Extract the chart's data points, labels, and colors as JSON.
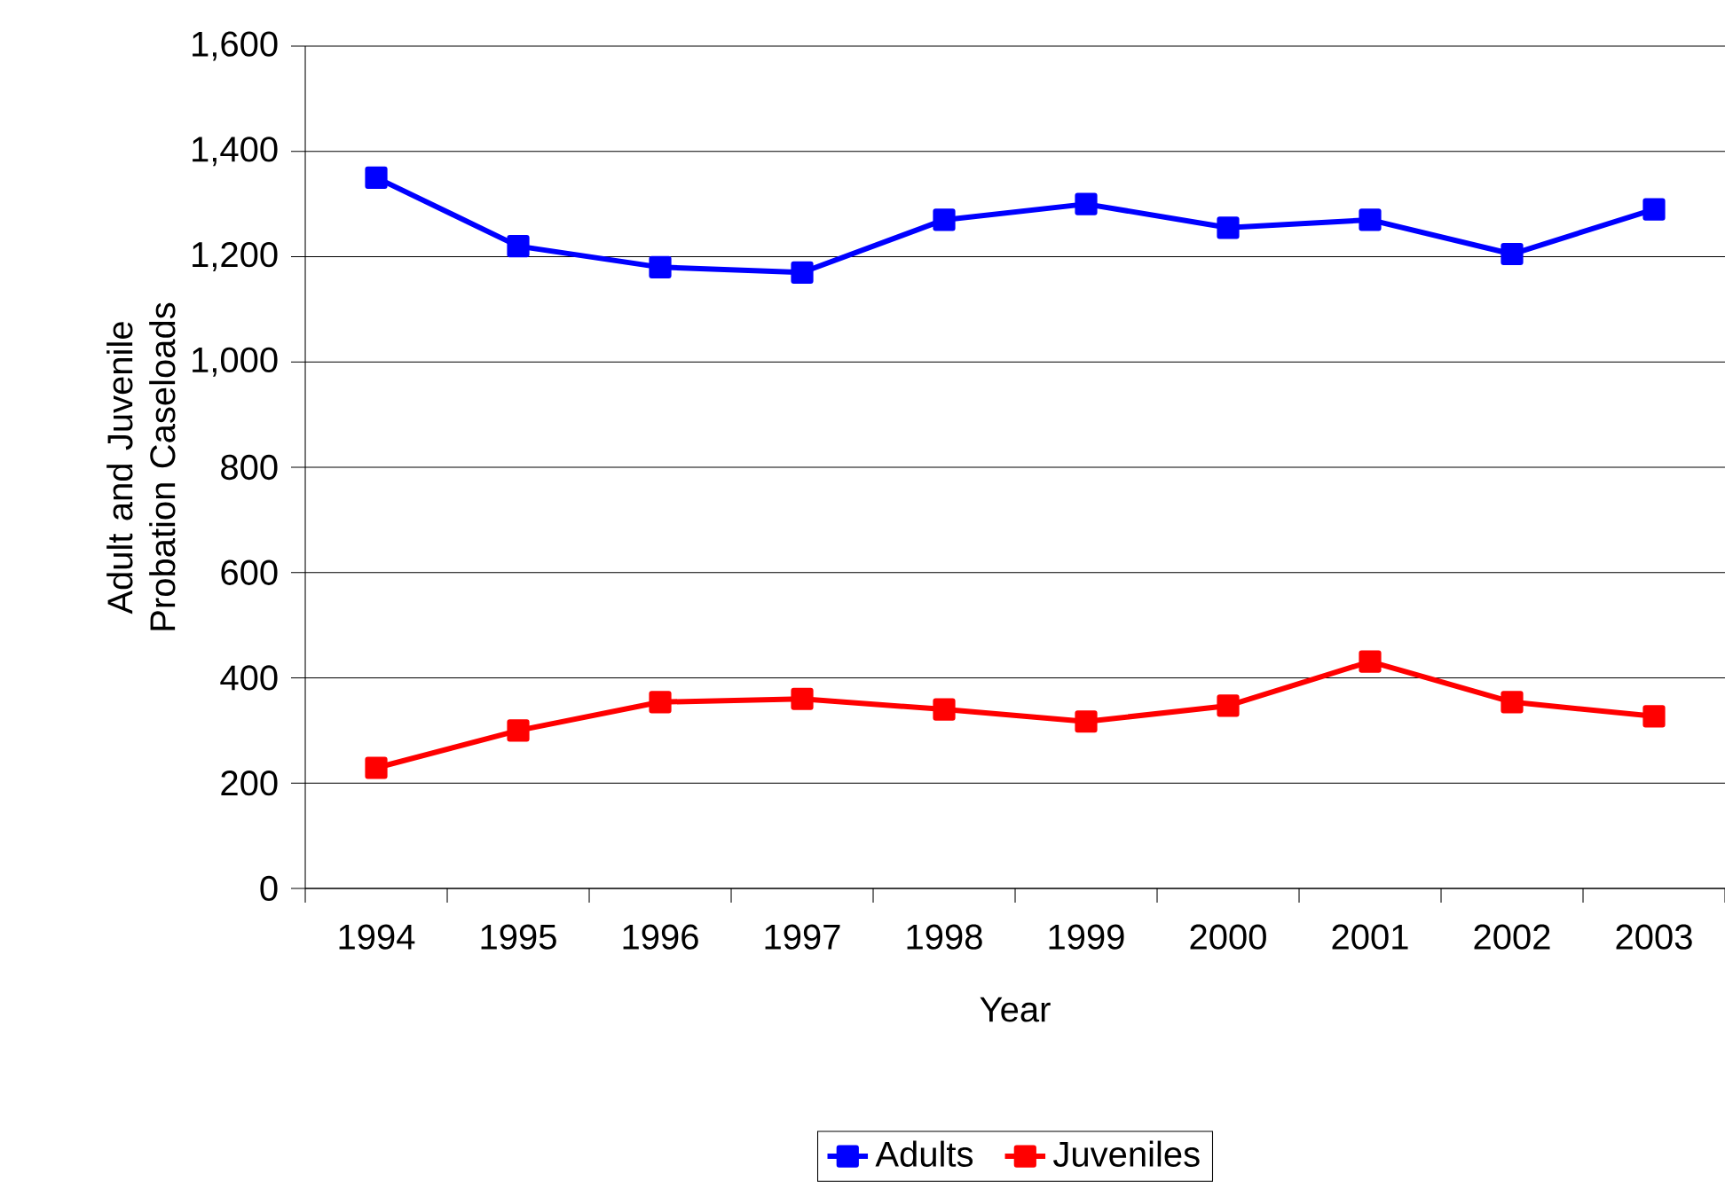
{
  "chart_data": {
    "type": "line",
    "xlabel": "Year",
    "ylabel": "Adult and Juvenile Probation Caseloads",
    "categories": [
      "1994",
      "1995",
      "1996",
      "1997",
      "1998",
      "1999",
      "2000",
      "2001",
      "2002",
      "2003"
    ],
    "series": [
      {
        "name": "Adults",
        "color": "#0000ff",
        "values": [
          1350,
          1220,
          1180,
          1170,
          1270,
          1300,
          1255,
          1270,
          1205,
          1290
        ]
      },
      {
        "name": "Juveniles",
        "color": "#ff0000",
        "values": [
          229,
          300,
          354,
          360,
          340,
          317,
          347,
          431,
          354,
          327
        ]
      }
    ],
    "ylim": [
      0,
      1600
    ],
    "yticks": [
      {
        "value": 0,
        "label": "0"
      },
      {
        "value": 200,
        "label": "200"
      },
      {
        "value": 400,
        "label": "400"
      },
      {
        "value": 600,
        "label": "600"
      },
      {
        "value": 800,
        "label": "800"
      },
      {
        "value": 1000,
        "label": "1,000"
      },
      {
        "value": 1200,
        "label": "1,200"
      },
      {
        "value": 1400,
        "label": "1,400"
      },
      {
        "value": 1600,
        "label": "1,600"
      }
    ],
    "grid": "y",
    "legend": "bottom",
    "marker": "square",
    "line_style": "solid"
  }
}
